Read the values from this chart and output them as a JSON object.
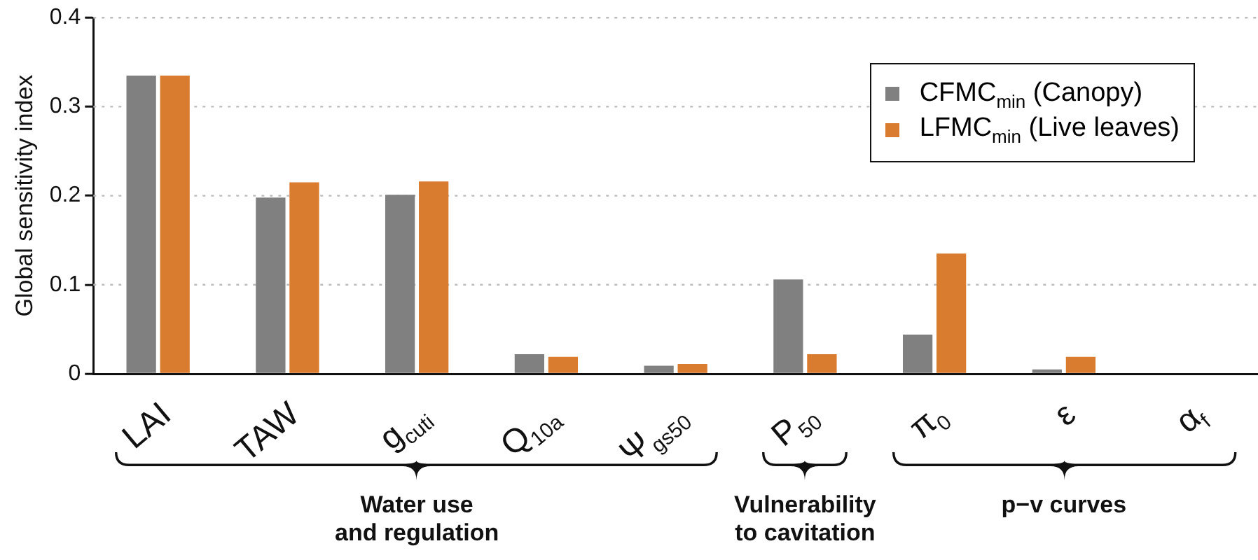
{
  "chart_data": {
    "type": "bar",
    "ylabel": "Global sensitivity index",
    "categories": [
      "LAI",
      "TAW",
      "g$_{cuti}$",
      "Q$_{10a}$",
      "Ψ$_{gs50}$",
      "P$_{50}$",
      "π$_{0}$",
      "ε",
      "α$_{f}$"
    ],
    "series": [
      {
        "name": "CFMC$_{min}$  (Canopy)",
        "color": "#808080",
        "values": [
          0.335,
          0.198,
          0.201,
          0.022,
          0.009,
          0.106,
          0.044,
          0.005,
          0
        ]
      },
      {
        "name": "LFMC$_{min}$  (Live leaves)",
        "color": "#d97c30",
        "values": [
          0.335,
          0.215,
          0.216,
          0.019,
          0.011,
          0.022,
          0.135,
          0.019,
          0
        ]
      }
    ],
    "ylim": [
      0,
      0.4
    ],
    "yticks": [
      0,
      0.1,
      0.2,
      0.3,
      0.4
    ],
    "grid": "y",
    "legend": "top right",
    "annotations": [
      "Water use\nand regulation",
      "Vulnerability\nto cavitation",
      "p−v curves"
    ]
  }
}
